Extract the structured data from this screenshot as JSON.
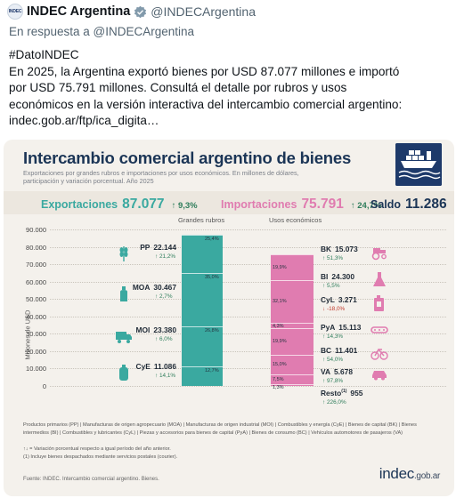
{
  "tweet": {
    "avatar_text": "INDEC",
    "display_name": "INDEC Argentina",
    "handle": "@INDECArgentina",
    "reply_to": "En respuesta a @INDECArgentina",
    "lines": [
      "#DatoINDEC",
      "En 2025, la Argentina exportó bienes por USD 87.077 millones e importó",
      "por USD 75.791 millones. Consultá el detalle por rubros y usos",
      "económicos en la versión interactiva del intercambio comercial argentino:",
      "indec.gob.ar/ftp/ica_digita…"
    ]
  },
  "infographic": {
    "title": "Intercambio comercial argentino de bienes",
    "subtitle": "Exportaciones por grandes rubros e importaciones por usos económicos. En millones de dólares, participación y variación porcentual. Año 2025",
    "summary": {
      "exp_label": "Exportaciones",
      "exp_value": "87.077",
      "exp_var": "↑ 9,3%",
      "imp_label": "Importaciones",
      "imp_value": "75.791",
      "imp_var": "↑ 24,7%",
      "saldo_label": "Saldo",
      "saldo_value": "11.286"
    },
    "col_head_left": "Grandes rubros",
    "col_head_right": "Usos económicos",
    "y_axis_title": "Millones de USD",
    "legend": "Productos primarios (PP) | Manufacturas de origen agropecuario (MOA) | Manufacturas de origen industrial (MOI) | Combustibles y energía (CyE) | Bienes de capital (BK) | Bienes intermedios (BI) | Combustibles y lubricantes (CyL) | Piezas y accesorios para bienes de capital (PyA) | Bienes de consumo (BC) | Vehículos automotores de pasajeros (VA)",
    "note_variation": "↑↓ = Variación porcentual respecto a igual período del año anterior.",
    "note_resto": "(1) Incluye bienes despachados mediante servicios postales (courier).",
    "fuente": "Fuente: INDEC. Intercambio comercial argentino. Bienes.",
    "logo_main": "indec",
    "logo_suffix": ".gob.ar",
    "colors": {
      "exports": "#3aa9a0",
      "imports": "#e07cb0",
      "title": "#1b3556",
      "up": "#2e7d5b",
      "down": "#c0392b"
    }
  },
  "chart_data": {
    "type": "bar",
    "ylabel": "Millones de USD",
    "ylim": [
      0,
      90000
    ],
    "y_ticks": [
      "90.000",
      "80.000",
      "70.000",
      "60.000",
      "50.000",
      "40.000",
      "30.000",
      "20.000",
      "10.000",
      "0"
    ],
    "exports": [
      {
        "code": "PP",
        "label": "PP",
        "value": 22144,
        "value_text": "22.144",
        "share": "25,4%",
        "variation": "↑ 21,2%",
        "dir": "up",
        "icon": "wheat-icon"
      },
      {
        "code": "MOA",
        "label": "MOA",
        "value": 30467,
        "value_text": "30.467",
        "share": "35,0%",
        "variation": "↑ 2,7%",
        "dir": "up",
        "icon": "bottle-icon"
      },
      {
        "code": "MOI",
        "label": "MOI",
        "value": 23380,
        "value_text": "23.380",
        "share": "26,8%",
        "variation": "↑ 6,0%",
        "dir": "up",
        "icon": "truck-icon"
      },
      {
        "code": "CyE",
        "label": "CyE",
        "value": 11086,
        "value_text": "11.086",
        "share": "12,7%",
        "variation": "↑ 14,1%",
        "dir": "up",
        "icon": "gas-tank-icon"
      }
    ],
    "imports": [
      {
        "code": "BK",
        "label": "BK",
        "value": 15073,
        "value_text": "15.073",
        "share": "19,9%",
        "variation": "↑ 51,3%",
        "dir": "up",
        "icon": "tractor-icon"
      },
      {
        "code": "BI",
        "label": "BI",
        "value": 24300,
        "value_text": "24.300",
        "share": "32,1%",
        "variation": "↑ 5,5%",
        "dir": "up",
        "icon": "flask-icon"
      },
      {
        "code": "CyL",
        "label": "CyL",
        "value": 3271,
        "value_text": "3.271",
        "share": "4,3%",
        "variation": "↓ -18,0%",
        "dir": "down",
        "icon": "fuel-can-icon"
      },
      {
        "code": "PyA",
        "label": "PyA",
        "value": 15113,
        "value_text": "15.113",
        "share": "19,9%",
        "variation": "↑ 14,3%",
        "dir": "up",
        "icon": "chain-icon"
      },
      {
        "code": "BC",
        "label": "BC",
        "value": 11401,
        "value_text": "11.401",
        "share": "15,0%",
        "variation": "↑ 54,0%",
        "dir": "up",
        "icon": "bicycle-icon"
      },
      {
        "code": "VA",
        "label": "VA",
        "value": 5678,
        "value_text": "5.678",
        "share": "7,5%",
        "variation": "↑ 97,8%",
        "dir": "up",
        "icon": "car-icon"
      },
      {
        "code": "Resto",
        "label": "Resto",
        "label_sup": "(1)",
        "value": 955,
        "value_text": "955",
        "share": "1,3%",
        "variation": "↑ 226,0%",
        "dir": "up",
        "icon": ""
      }
    ]
  }
}
